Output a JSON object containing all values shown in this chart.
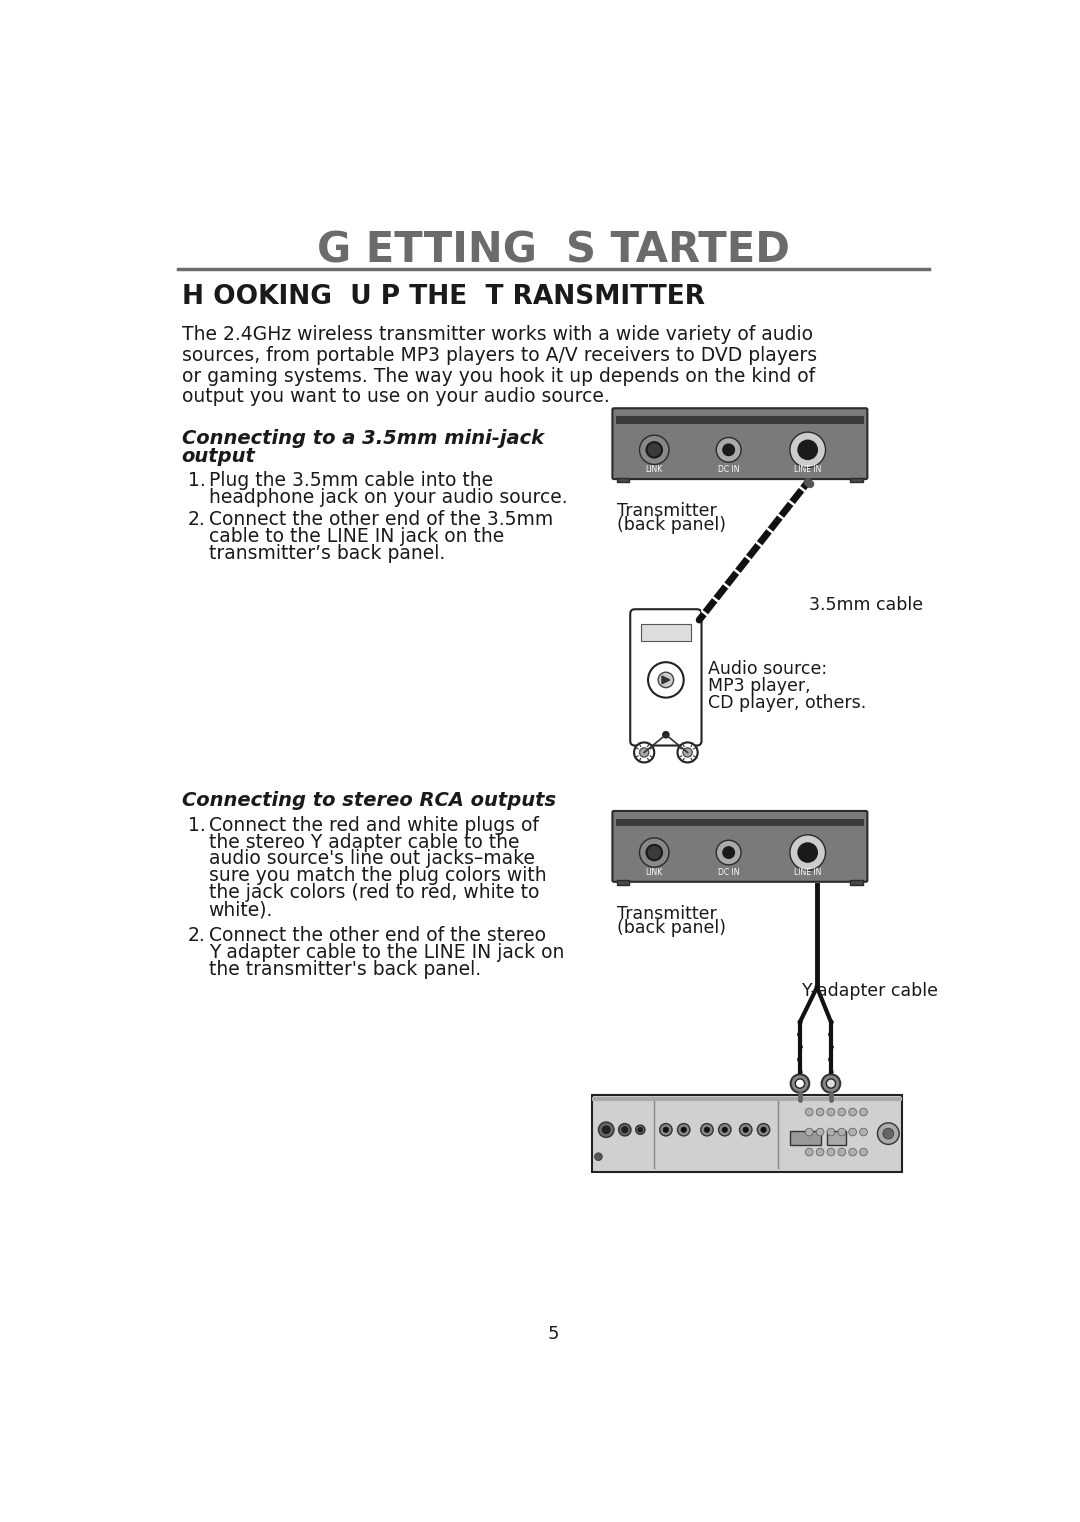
{
  "bg_color": "#ffffff",
  "title": "G ETTING  S TARTED",
  "section_title": "H OOKING  U P THE  T RANSMITTER",
  "intro_text": "The 2.4GHz wireless transmitter works with a wide variety of audio\nsources, from portable MP3 players to A/V receivers to DVD players\nor gaming systems. The way you hook it up depends on the kind of\noutput you want to use on your audio source.",
  "subsection1_title_line1": "Connecting to a 3.5mm mini-jack",
  "subsection1_title_line2": "output",
  "subsection1_step1_lines": [
    "Plug the 3.5mm cable into the",
    "headphone jack on your audio source."
  ],
  "subsection1_step2_lines": [
    "Connect the other end of the 3.5mm",
    "cable to the LINE IN jack on the",
    "transmitter’s back panel."
  ],
  "subsection2_title": "Connecting to stereo RCA outputs",
  "subsection2_step1_lines": [
    "Connect the red and white plugs of",
    "the stereo Y adapter cable to the",
    "audio source's line out jacks–make",
    "sure you match the plug colors with",
    "the jack colors (red to red, white to",
    "white)."
  ],
  "subsection2_step2_lines": [
    "Connect the other end of the stereo",
    "Y adapter cable to the LINE IN jack on",
    "the transmitter's back panel."
  ],
  "label_transmitter": "Transmitter\n(back panel)",
  "label_cable_35mm": "3.5mm cable",
  "label_audio_source_line1": "Audio source:",
  "label_audio_source_line2": "MP3 player,",
  "label_audio_source_line3": "CD player, others.",
  "label_y_adapter": "Y-adapter cable",
  "page_number": "5",
  "header_color": "#6b6b6b",
  "text_color": "#1a1a1a",
  "device_gray": "#7a7a7a",
  "device_dark": "#555555",
  "line_color": "#888888"
}
